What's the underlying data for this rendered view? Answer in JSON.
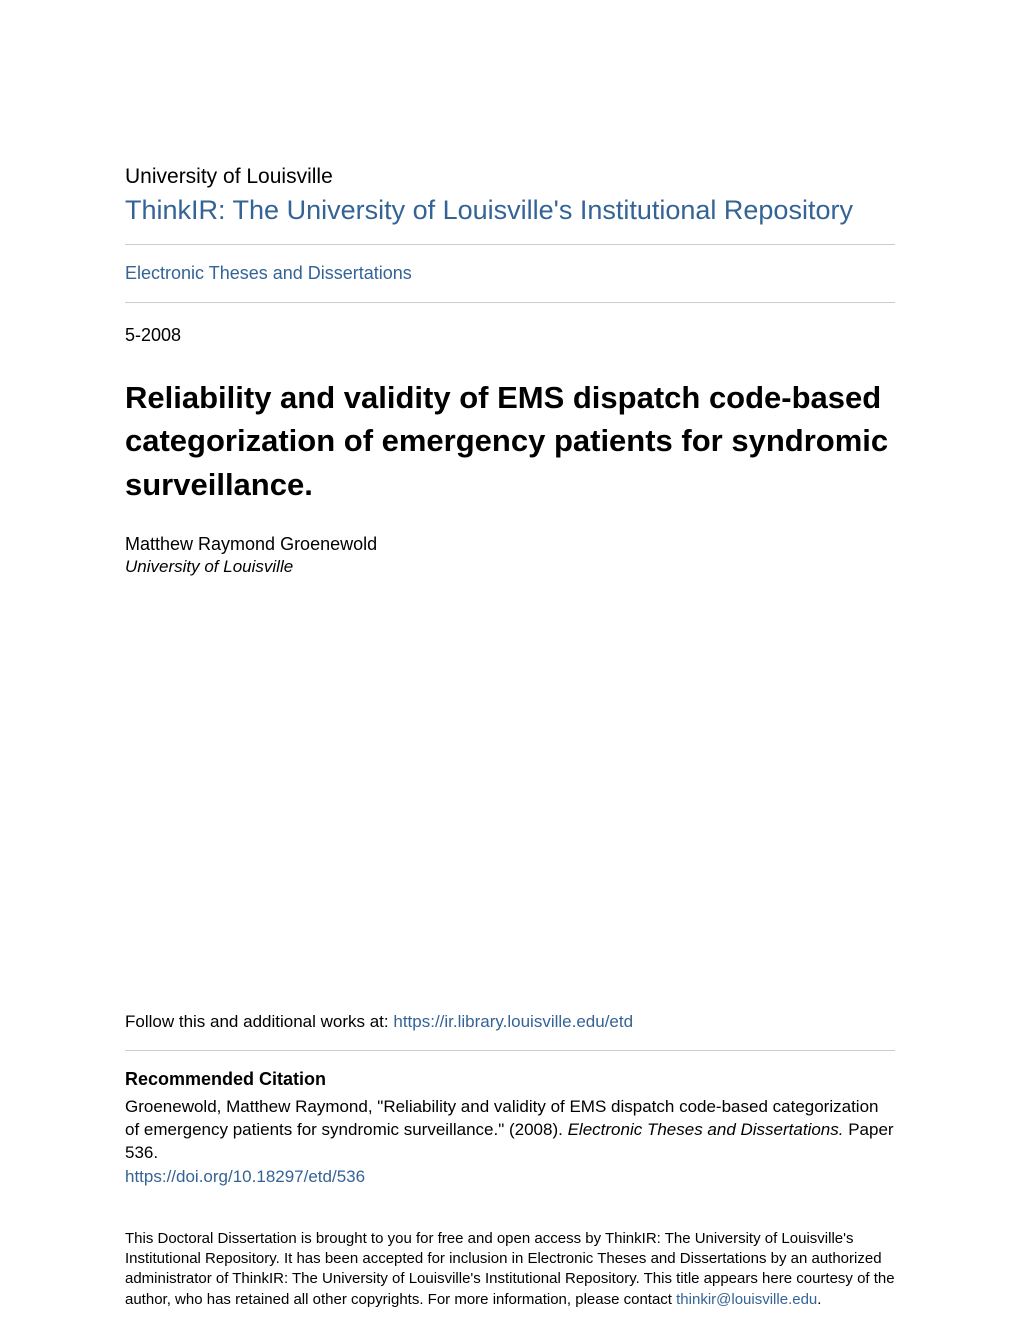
{
  "header": {
    "institution": "University of Louisville",
    "repository_title": "ThinkIR: The University of Louisville's Institutional Repository",
    "repository_url_label": "ThinkIR: The University of Louisville's Institutional Repository"
  },
  "collection": {
    "label": "Electronic Theses and Dissertations"
  },
  "metadata": {
    "date": "5-2008",
    "title": "Reliability and validity of EMS dispatch code-based categorization of emergency patients for syndromic surveillance.",
    "author": "Matthew Raymond Groenewold",
    "author_affiliation": "University of Louisville"
  },
  "follow": {
    "prefix": "Follow this and additional works at: ",
    "url": "https://ir.library.louisville.edu/etd"
  },
  "citation": {
    "heading": "Recommended Citation",
    "text_part1": "Groenewold, Matthew Raymond, \"Reliability and validity of EMS dispatch code-based categorization of emergency patients for syndromic surveillance.\" (2008). ",
    "text_italic": "Electronic Theses and Dissertations.",
    "text_part2": " Paper 536.",
    "doi": "https://doi.org/10.18297/etd/536"
  },
  "footer": {
    "text_part1": "This Doctoral Dissertation is brought to you for free and open access by ThinkIR: The University of Louisville's Institutional Repository. It has been accepted for inclusion in Electronic Theses and Dissertations by an authorized administrator of ThinkIR: The University of Louisville's Institutional Repository. This title appears here courtesy of the author, who has retained all other copyrights. For more information, please contact ",
    "contact_email": "thinkir@louisville.edu",
    "text_part2": "."
  },
  "colors": {
    "link_color": "#346396",
    "text_color": "#000000",
    "background": "#ffffff",
    "hr_color": "#cccccc"
  }
}
